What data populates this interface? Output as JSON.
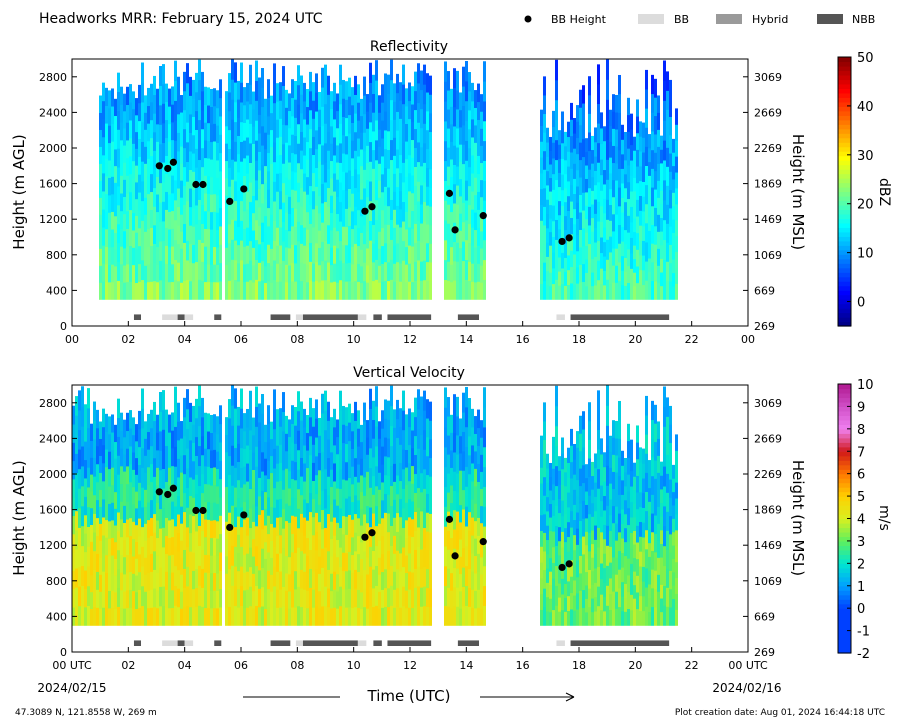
{
  "header": {
    "title": "Headworks MRR:  February 15, 2024 UTC",
    "legend": [
      {
        "label": "BB Height",
        "kind": "dot",
        "color": "#000000"
      },
      {
        "label": "BB",
        "kind": "box",
        "color": "#dcdcdc"
      },
      {
        "label": "Hybrid",
        "kind": "box",
        "color": "#9a9a9a"
      },
      {
        "label": "NBB",
        "kind": "box",
        "color": "#555555"
      }
    ]
  },
  "footer": {
    "location": "47.3089 N, 121.8558 W, 269 m",
    "creation": "Plot creation date: Aug 01, 2024 16:44:18 UTC",
    "xlabel": "Time (UTC)",
    "date_left": "2024/02/15",
    "date_right": "2024/02/16"
  },
  "chart_data": [
    {
      "type": "heatmap",
      "title": "Reflectivity",
      "ylabel": "Height (m AGL)",
      "y2label": "Height (m MSL)",
      "xlim": [
        0,
        24
      ],
      "ylim": [
        0,
        3000
      ],
      "xticks": [
        "00",
        "02",
        "04",
        "06",
        "08",
        "10",
        "12",
        "14",
        "16",
        "18",
        "20",
        "22",
        "00"
      ],
      "yticks": [
        0,
        400,
        800,
        1200,
        1600,
        2000,
        2400,
        2800
      ],
      "y2ticks": [
        269,
        669,
        1069,
        1469,
        1869,
        2269,
        2669,
        3069
      ],
      "colorbar": {
        "label": "dBZ",
        "min": -5,
        "max": 50,
        "ticks": [
          0,
          10,
          20,
          30,
          40,
          50
        ],
        "palette": "jet"
      },
      "echo_periods": [
        [
          1.0,
          5.3
        ],
        [
          5.4,
          12.8
        ],
        [
          13.2,
          14.7
        ],
        [
          16.6,
          21.5
        ]
      ],
      "bb_heights": [
        [
          3.1,
          1800
        ],
        [
          3.4,
          1770
        ],
        [
          3.6,
          1840
        ],
        [
          4.4,
          1590
        ],
        [
          4.65,
          1590
        ],
        [
          5.6,
          1400
        ],
        [
          6.1,
          1540
        ],
        [
          10.4,
          1290
        ],
        [
          10.65,
          1340
        ],
        [
          13.4,
          1490
        ],
        [
          13.6,
          1080
        ],
        [
          14.6,
          1240
        ],
        [
          17.4,
          950
        ],
        [
          17.65,
          990
        ]
      ],
      "bb_type_bars": [
        {
          "start": 2.2,
          "end": 2.45,
          "type": "NBB"
        },
        {
          "start": 3.2,
          "end": 3.75,
          "type": "BB"
        },
        {
          "start": 3.75,
          "end": 4.0,
          "type": "NBB"
        },
        {
          "start": 4.0,
          "end": 4.3,
          "type": "BB"
        },
        {
          "start": 5.05,
          "end": 5.3,
          "type": "NBB"
        },
        {
          "start": 7.05,
          "end": 7.75,
          "type": "NBB"
        },
        {
          "start": 7.95,
          "end": 8.2,
          "type": "BB"
        },
        {
          "start": 8.2,
          "end": 10.15,
          "type": "NBB"
        },
        {
          "start": 10.15,
          "end": 10.45,
          "type": "BB"
        },
        {
          "start": 10.7,
          "end": 11.0,
          "type": "NBB"
        },
        {
          "start": 11.2,
          "end": 12.75,
          "type": "NBB"
        },
        {
          "start": 13.7,
          "end": 14.45,
          "type": "NBB"
        },
        {
          "start": 17.2,
          "end": 17.5,
          "type": "BB"
        },
        {
          "start": 17.7,
          "end": 21.2,
          "type": "NBB"
        }
      ]
    },
    {
      "type": "heatmap",
      "title": "Vertical Velocity",
      "ylabel": "Height (m AGL)",
      "y2label": "Height (m MSL)",
      "xlim": [
        0,
        24
      ],
      "ylim": [
        0,
        3000
      ],
      "xticks": [
        "00 UTC",
        "02",
        "04",
        "06",
        "08",
        "10",
        "12",
        "14",
        "16",
        "18",
        "20",
        "22",
        "00 UTC"
      ],
      "yticks": [
        0,
        400,
        800,
        1200,
        1600,
        2000,
        2400,
        2800
      ],
      "y2ticks": [
        269,
        669,
        1069,
        1469,
        1869,
        2269,
        2669,
        3069
      ],
      "colorbar": {
        "label": "m/s",
        "min": -2,
        "max": 10,
        "ticks": [
          -2,
          -1,
          0,
          1,
          2,
          3,
          4,
          5,
          6,
          7,
          8,
          9,
          10
        ],
        "palette": "velocity"
      },
      "echo_periods": [
        [
          0.0,
          5.3
        ],
        [
          5.4,
          12.8
        ],
        [
          13.2,
          14.7
        ],
        [
          16.6,
          21.5
        ]
      ],
      "bb_heights": [
        [
          3.1,
          1800
        ],
        [
          3.4,
          1770
        ],
        [
          3.6,
          1840
        ],
        [
          4.4,
          1590
        ],
        [
          4.65,
          1590
        ],
        [
          5.6,
          1400
        ],
        [
          6.1,
          1540
        ],
        [
          10.4,
          1290
        ],
        [
          10.65,
          1340
        ],
        [
          13.4,
          1490
        ],
        [
          13.6,
          1080
        ],
        [
          14.6,
          1240
        ],
        [
          17.4,
          950
        ],
        [
          17.65,
          990
        ]
      ],
      "bb_type_bars": [
        {
          "start": 2.2,
          "end": 2.45,
          "type": "NBB"
        },
        {
          "start": 3.2,
          "end": 3.75,
          "type": "BB"
        },
        {
          "start": 3.75,
          "end": 4.0,
          "type": "NBB"
        },
        {
          "start": 4.0,
          "end": 4.3,
          "type": "BB"
        },
        {
          "start": 5.05,
          "end": 5.3,
          "type": "NBB"
        },
        {
          "start": 7.05,
          "end": 7.75,
          "type": "NBB"
        },
        {
          "start": 7.95,
          "end": 8.2,
          "type": "BB"
        },
        {
          "start": 8.2,
          "end": 10.15,
          "type": "NBB"
        },
        {
          "start": 10.15,
          "end": 10.45,
          "type": "BB"
        },
        {
          "start": 10.7,
          "end": 11.0,
          "type": "NBB"
        },
        {
          "start": 11.2,
          "end": 12.75,
          "type": "NBB"
        },
        {
          "start": 13.7,
          "end": 14.45,
          "type": "NBB"
        },
        {
          "start": 17.2,
          "end": 17.5,
          "type": "BB"
        },
        {
          "start": 17.7,
          "end": 21.2,
          "type": "NBB"
        }
      ]
    }
  ]
}
